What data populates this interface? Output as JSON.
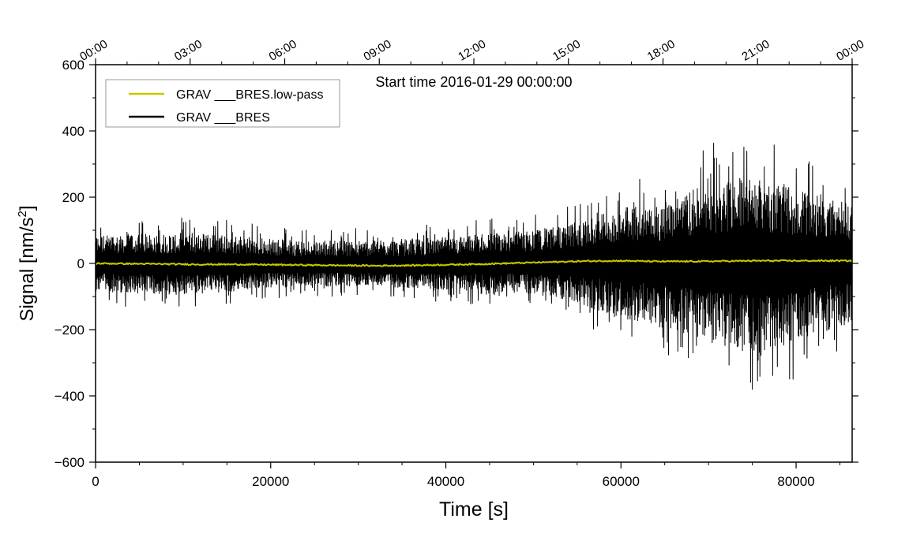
{
  "chart_data": {
    "type": "line",
    "title": "Start time 2016-01-29 00:00:00",
    "xlabel": "Time [s]",
    "ylabel_main": "Signal [nm/s",
    "ylabel_sup": "2",
    "ylabel_close": "]",
    "xlim": [
      0,
      86400
    ],
    "ylim": [
      -600,
      600
    ],
    "x_ticks": [
      0,
      20000,
      40000,
      60000,
      80000
    ],
    "x_tick_labels": [
      "0",
      "20000",
      "40000",
      "60000",
      "80000"
    ],
    "y_ticks": [
      -600,
      -400,
      -200,
      0,
      200,
      400,
      600
    ],
    "y_tick_labels": [
      "−600",
      "−400",
      "−200",
      "0",
      "200",
      "400",
      "600"
    ],
    "top_axis": {
      "ticks": [
        0,
        10800,
        21600,
        32400,
        43200,
        54000,
        64800,
        75600,
        86400
      ],
      "labels": [
        "00:00",
        "03:00",
        "06:00",
        "09:00",
        "12:00",
        "15:00",
        "18:00",
        "21:00",
        "00:00"
      ]
    },
    "legend_placement": "top-left",
    "series": [
      {
        "name": "GRAV ___BRES.low-pass",
        "color": "#c8c800",
        "x": [
          0,
          4000,
          8000,
          12000,
          16000,
          20000,
          24000,
          28000,
          32000,
          36000,
          40000,
          44000,
          48000,
          52000,
          56000,
          60000,
          64000,
          68000,
          72000,
          76000,
          80000,
          84000,
          86400
        ],
        "values": [
          0,
          -1,
          -2,
          -3,
          -3,
          -4,
          -5,
          -6,
          -7,
          -6,
          -4,
          -2,
          1,
          4,
          7,
          8,
          6,
          6,
          7,
          8,
          8,
          8,
          8
        ]
      },
      {
        "name": "GRAV ___BRES",
        "color": "#000000",
        "x": [
          0,
          4000,
          8000,
          12000,
          16000,
          20000,
          24000,
          28000,
          32000,
          36000,
          40000,
          44000,
          48000,
          52000,
          56000,
          60000,
          64000,
          68000,
          72000,
          76000,
          80000,
          84000,
          86400
        ],
        "envelope_upper": [
          85,
          90,
          90,
          95,
          85,
          75,
          70,
          70,
          70,
          75,
          80,
          90,
          95,
          110,
          130,
          170,
          180,
          220,
          260,
          260,
          230,
          200,
          180
        ],
        "envelope_lower": [
          -85,
          -90,
          -95,
          -95,
          -85,
          -75,
          -70,
          -70,
          -70,
          -75,
          -80,
          -85,
          -90,
          -100,
          -130,
          -170,
          -190,
          -220,
          -260,
          -280,
          -230,
          -200,
          -180
        ]
      }
    ]
  }
}
